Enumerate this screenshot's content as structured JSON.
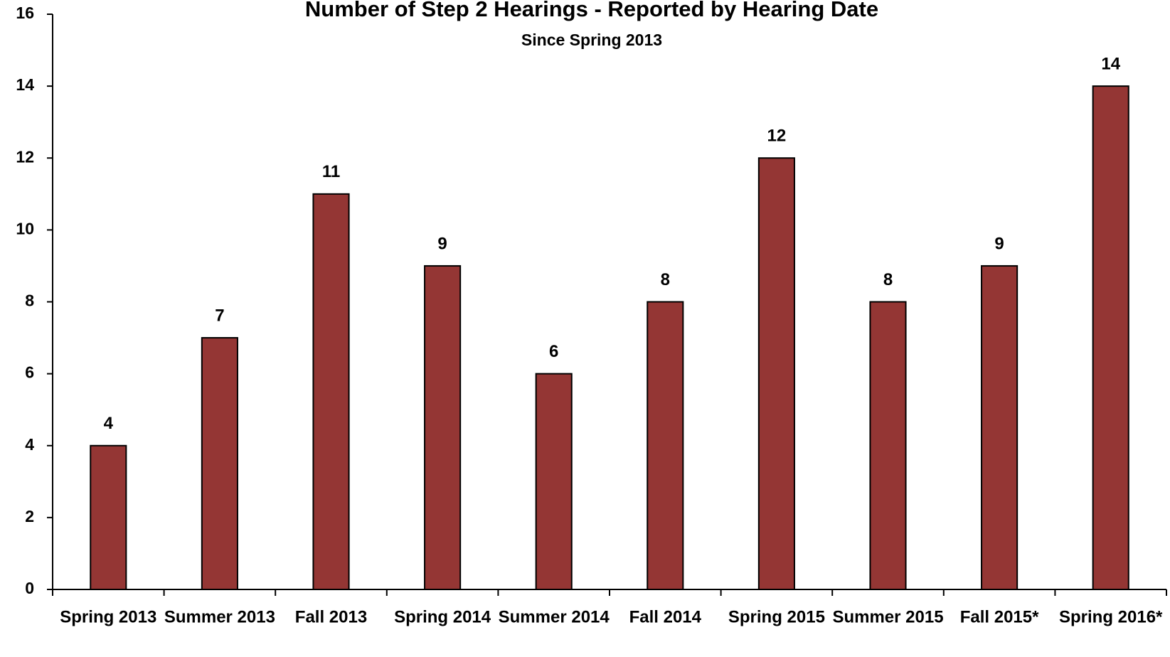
{
  "chart_data": {
    "type": "bar",
    "title": "Number of Step 2 Hearings - Reported by Hearing Date",
    "subtitle": "Since Spring 2013",
    "categories": [
      "Spring 2013",
      "Summer 2013",
      "Fall 2013",
      "Spring 2014",
      "Summer 2014",
      "Fall 2014",
      "Spring 2015",
      "Summer 2015",
      "Fall 2015*",
      "Spring 2016*"
    ],
    "values": [
      4,
      7,
      11,
      9,
      6,
      8,
      12,
      8,
      9,
      14
    ],
    "color": "#943634",
    "ylim": [
      0,
      16
    ],
    "yticks": [
      0,
      2,
      4,
      6,
      8,
      10,
      12,
      14,
      16
    ],
    "grid": false
  }
}
